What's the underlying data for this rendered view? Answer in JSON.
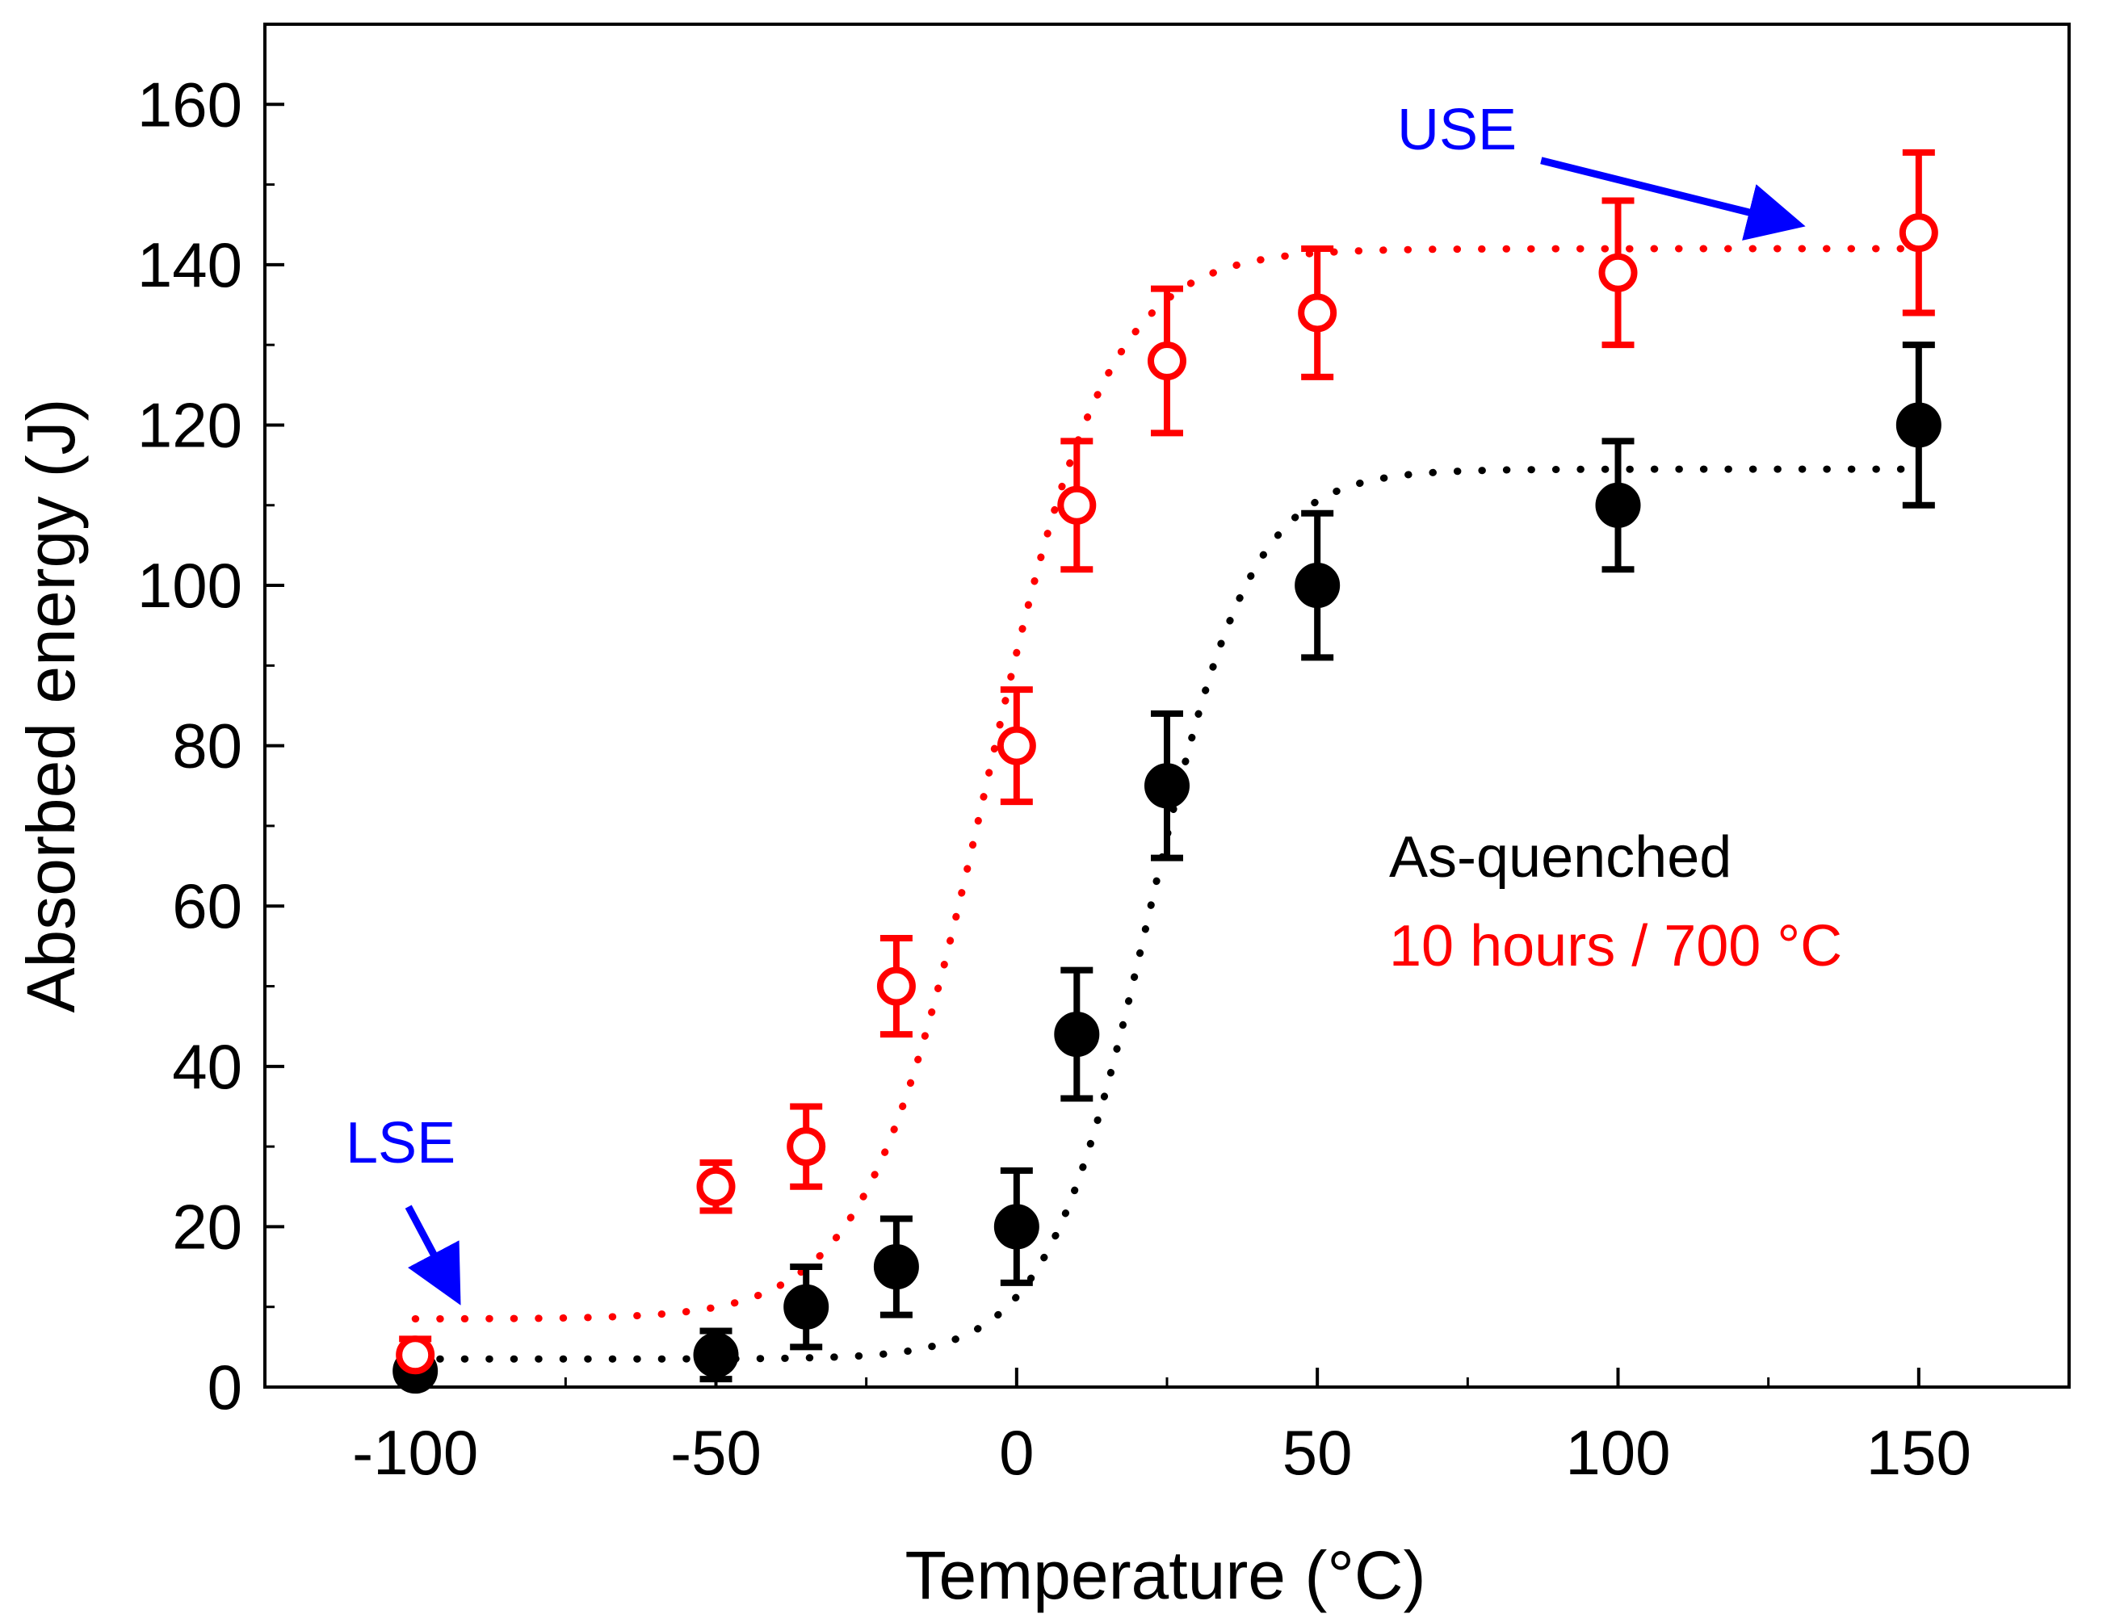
{
  "chart_data": {
    "type": "scatter",
    "title": "",
    "xlabel": "Temperature (°C)",
    "ylabel": "Absorbed energy (J)",
    "xlim": [
      -125,
      175
    ],
    "ylim": [
      0,
      170
    ],
    "xticks": [
      -100,
      -50,
      0,
      50,
      100,
      150
    ],
    "xtick_labels": [
      "-100",
      "-50",
      "0",
      "50",
      "100",
      "150"
    ],
    "yticks": [
      0,
      20,
      40,
      60,
      80,
      100,
      120,
      140,
      160
    ],
    "ytick_labels": [
      "0",
      "20",
      "40",
      "60",
      "80",
      "100",
      "120",
      "140",
      "160"
    ],
    "x_minor_step": 25,
    "y_minor_step": 10,
    "grid": false,
    "series": [
      {
        "name": "As-quenched",
        "color": "#000000",
        "marker": "filled-circle",
        "x": [
          -100,
          -50,
          -35,
          -20,
          0,
          10,
          25,
          50,
          100,
          150
        ],
        "y": [
          2,
          4,
          10,
          15,
          20,
          44,
          75,
          100,
          110,
          120
        ],
        "err": [
          1.5,
          3,
          5,
          6,
          7,
          8,
          9,
          9,
          8,
          10
        ],
        "fit": {
          "style": "dotted",
          "lower_shelf": 3.5,
          "upper_shelf": 114.5,
          "t0": 22,
          "c": 17
        }
      },
      {
        "name": "10 hours / 700 °C",
        "color": "#ff0000",
        "marker": "open-circle",
        "x": [
          -100,
          -50,
          -35,
          -20,
          0,
          10,
          25,
          50,
          100,
          150
        ],
        "y": [
          4,
          25,
          30,
          50,
          80,
          110,
          128,
          134,
          139,
          144
        ],
        "err": [
          2,
          3,
          5,
          6,
          7,
          8,
          9,
          8,
          9,
          10
        ],
        "fit": {
          "style": "dotted",
          "lower_shelf": 8.5,
          "upper_shelf": 142,
          "t0": -5,
          "c": 20
        }
      }
    ],
    "legend": {
      "position": "center-right",
      "entries": [
        "As-quenched",
        "10 hours / 700 °C"
      ]
    },
    "annotations": [
      {
        "text": "LSE",
        "color": "#0000ff",
        "arrow_to": [
          -93,
          11
        ]
      },
      {
        "text": "USE",
        "color": "#0000ff",
        "arrow_to": [
          130,
          145
        ]
      }
    ]
  }
}
